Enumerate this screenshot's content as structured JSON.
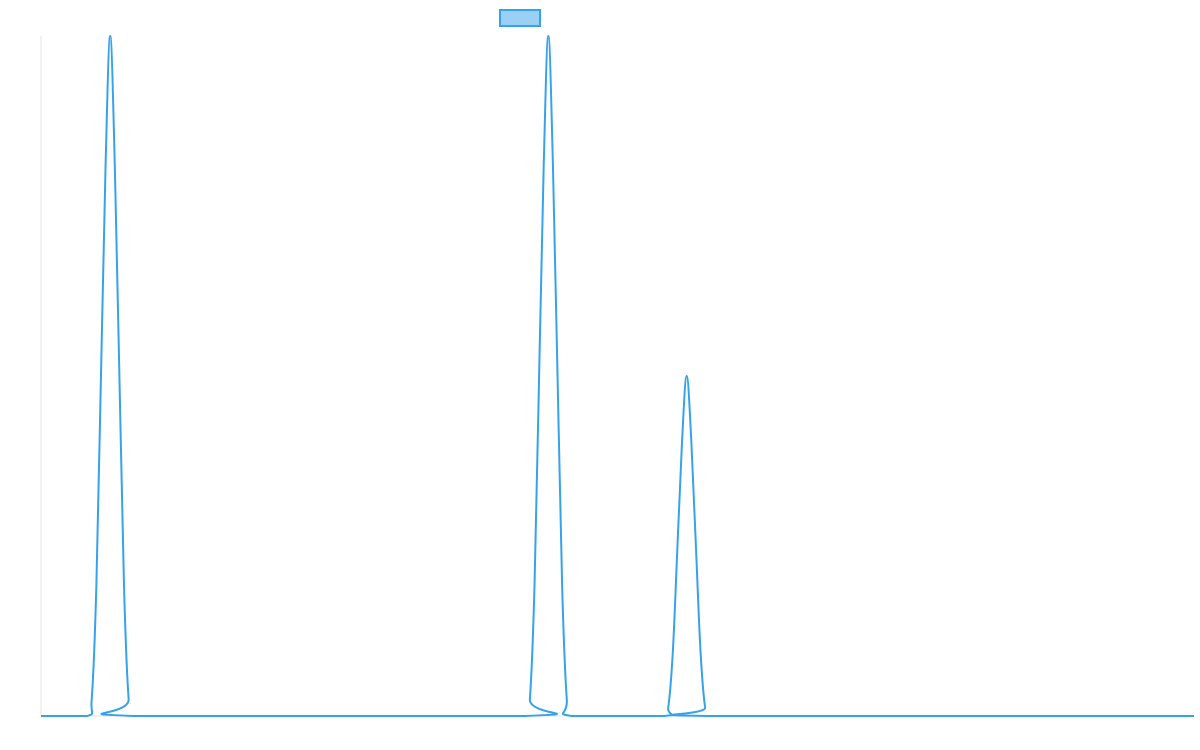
{
  "chart_data": {
    "type": "line",
    "title": "",
    "xlabel": "",
    "ylabel": "",
    "xlim": [
      0,
      100
    ],
    "ylim": [
      0,
      100
    ],
    "grid": false,
    "legend": {
      "visible": true,
      "placement": "top-center",
      "entries": [
        ""
      ]
    },
    "series": [
      {
        "color": "#36a2eb",
        "fill": "#9ad0f5",
        "x": [
          0,
          4,
          4.4,
          4.8,
          5.2,
          5.6,
          6.0,
          6.4,
          6.8,
          7.2,
          7.6,
          8.0,
          42,
          42.4,
          42.8,
          43.2,
          43.6,
          44.0,
          44.4,
          44.8,
          45.2,
          45.6,
          46.0,
          54,
          54.4,
          54.8,
          55.2,
          55.6,
          56.0,
          56.4,
          56.8,
          57.2,
          57.6,
          58.0,
          100
        ],
        "y": [
          0,
          0,
          2.5,
          19.0,
          50.0,
          81.0,
          100,
          81.0,
          50.0,
          19.0,
          2.5,
          0,
          0,
          2.5,
          19.0,
          50.0,
          81.0,
          100,
          81.0,
          50.0,
          19.0,
          2.5,
          0,
          0,
          1.25,
          9.5,
          25.0,
          40.5,
          50.0,
          40.5,
          25.0,
          9.5,
          1.25,
          0,
          0
        ]
      }
    ]
  }
}
